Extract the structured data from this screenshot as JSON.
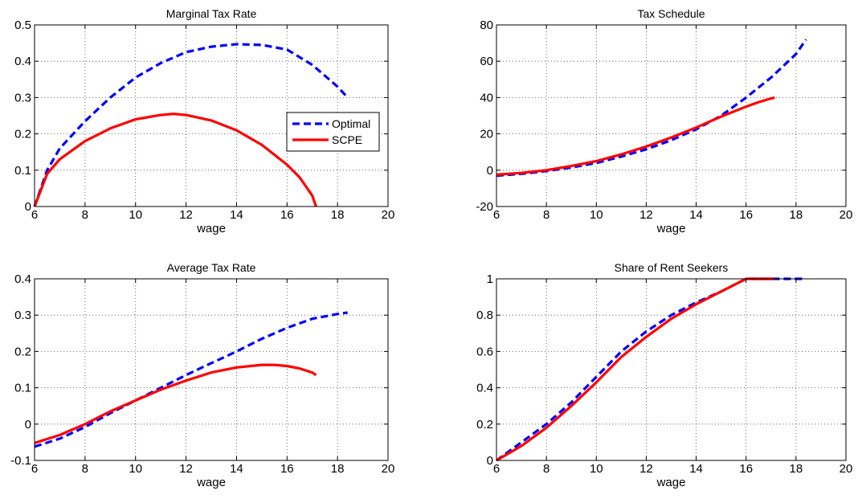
{
  "chart_data": [
    {
      "type": "line",
      "title": "Marginal Tax Rate",
      "xlabel": "wage",
      "ylabel": "",
      "xlim": [
        6,
        20
      ],
      "ylim": [
        0,
        0.5
      ],
      "xticks": [
        "6",
        "8",
        "10",
        "12",
        "14",
        "16",
        "18",
        "20"
      ],
      "yticks": [
        "0",
        "0.1",
        "0.2",
        "0.3",
        "0.4",
        "0.5"
      ],
      "grid": true,
      "legend": "right",
      "series": [
        {
          "name": "Optimal",
          "color": "#0000ff",
          "dash": "dashed",
          "x": [
            6,
            6.5,
            7,
            8,
            9,
            10,
            11,
            12,
            13,
            14,
            15,
            16,
            17,
            18,
            18.4
          ],
          "y": [
            0,
            0.1,
            0.16,
            0.235,
            0.3,
            0.355,
            0.395,
            0.425,
            0.44,
            0.447,
            0.445,
            0.432,
            0.39,
            0.33,
            0.3
          ]
        },
        {
          "name": "SCPE",
          "color": "#ff0000",
          "dash": "solid",
          "x": [
            6,
            6.5,
            7,
            8,
            9,
            10,
            11,
            11.5,
            12,
            13,
            14,
            15,
            16,
            16.5,
            17,
            17.15
          ],
          "y": [
            0,
            0.09,
            0.13,
            0.18,
            0.215,
            0.24,
            0.252,
            0.255,
            0.252,
            0.237,
            0.21,
            0.17,
            0.115,
            0.08,
            0.03,
            0
          ]
        }
      ]
    },
    {
      "type": "line",
      "title": "Tax Schedule",
      "xlabel": "wage",
      "ylabel": "",
      "xlim": [
        6,
        20
      ],
      "ylim": [
        -20,
        80
      ],
      "xticks": [
        "6",
        "8",
        "10",
        "12",
        "14",
        "16",
        "18",
        "20"
      ],
      "yticks": [
        "-20",
        "0",
        "20",
        "40",
        "60",
        "80"
      ],
      "grid": true,
      "series": [
        {
          "name": "Optimal",
          "color": "#0000ff",
          "dash": "dashed",
          "x": [
            6,
            7,
            8,
            9,
            10,
            11,
            12,
            13,
            14,
            15,
            16,
            17,
            18,
            18.4
          ],
          "y": [
            -3,
            -2,
            -0.5,
            1.5,
            4,
            7.5,
            11.5,
            16.5,
            22.5,
            30,
            40,
            51,
            64,
            72
          ]
        },
        {
          "name": "SCPE",
          "color": "#ff0000",
          "dash": "solid",
          "x": [
            6,
            7,
            8,
            9,
            10,
            11,
            12,
            13,
            14,
            15,
            16,
            16.5,
            17,
            17.15
          ],
          "y": [
            -2.5,
            -1.5,
            0,
            2.3,
            5,
            8.7,
            13,
            18,
            23.5,
            29.5,
            35,
            37.5,
            39.5,
            40
          ]
        }
      ]
    },
    {
      "type": "line",
      "title": "Average Tax Rate",
      "xlabel": "wage",
      "ylabel": "",
      "xlim": [
        6,
        20
      ],
      "ylim": [
        -0.1,
        0.4
      ],
      "xticks": [
        "6",
        "8",
        "10",
        "12",
        "14",
        "16",
        "18",
        "20"
      ],
      "yticks": [
        "-0.1",
        "0",
        "0.1",
        "0.2",
        "0.3",
        "0.4"
      ],
      "grid": true,
      "series": [
        {
          "name": "Optimal",
          "color": "#0000ff",
          "dash": "dashed",
          "x": [
            6,
            7,
            8,
            9,
            10,
            11,
            12,
            13,
            14,
            15,
            16,
            17,
            18,
            18.4
          ],
          "y": [
            -0.062,
            -0.04,
            -0.008,
            0.03,
            0.065,
            0.1,
            0.135,
            0.168,
            0.2,
            0.235,
            0.265,
            0.29,
            0.303,
            0.307
          ]
        },
        {
          "name": "SCPE",
          "color": "#ff0000",
          "dash": "solid",
          "x": [
            6,
            7,
            8,
            9,
            10,
            11,
            12,
            13,
            14,
            15,
            15.5,
            16,
            16.5,
            17,
            17.15
          ],
          "y": [
            -0.052,
            -0.03,
            0,
            0.035,
            0.065,
            0.095,
            0.12,
            0.142,
            0.156,
            0.163,
            0.163,
            0.16,
            0.153,
            0.142,
            0.135
          ]
        }
      ]
    },
    {
      "type": "line",
      "title": "Share of Rent Seekers",
      "xlabel": "wage",
      "ylabel": "",
      "xlim": [
        6,
        20
      ],
      "ylim": [
        0,
        1
      ],
      "xticks": [
        "6",
        "8",
        "10",
        "12",
        "14",
        "16",
        "18",
        "20"
      ],
      "yticks": [
        "0",
        "0.2",
        "0.4",
        "0.6",
        "0.8",
        "1"
      ],
      "grid": true,
      "series": [
        {
          "name": "Optimal",
          "color": "#0000ff",
          "dash": "dashed",
          "x": [
            6,
            7,
            8,
            9,
            10,
            11,
            12,
            13,
            14,
            15,
            16,
            17,
            18,
            18.4
          ],
          "y": [
            0,
            0.1,
            0.2,
            0.32,
            0.46,
            0.6,
            0.71,
            0.8,
            0.87,
            0.93,
            1,
            1,
            1,
            1
          ]
        },
        {
          "name": "SCPE",
          "color": "#ff0000",
          "dash": "solid",
          "x": [
            6,
            7,
            8,
            9,
            10,
            11,
            12,
            13,
            14,
            15,
            16,
            17,
            17.15
          ],
          "y": [
            0,
            0.08,
            0.18,
            0.3,
            0.43,
            0.57,
            0.68,
            0.78,
            0.86,
            0.93,
            1,
            1,
            1
          ]
        }
      ]
    }
  ]
}
